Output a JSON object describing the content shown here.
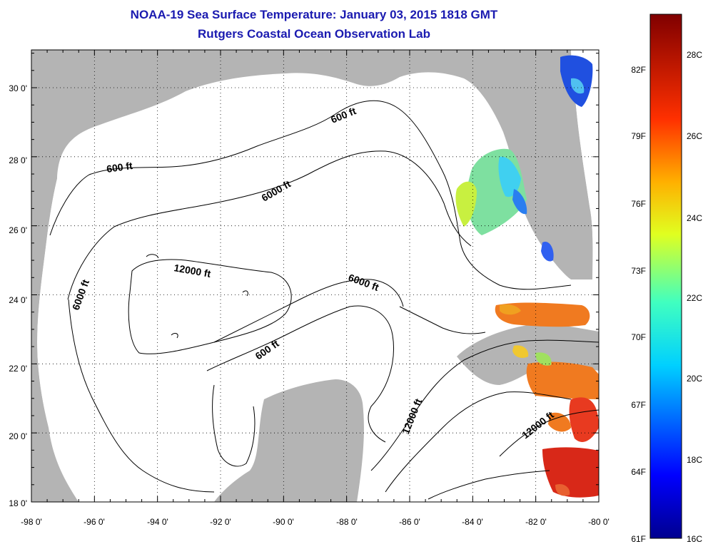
{
  "header": {
    "title": "NOAA-19 Sea Surface Temperature:  January 03, 2015 1818 GMT",
    "subtitle": "Rutgers Coastal Ocean Observation Lab"
  },
  "map": {
    "lon_labels": [
      "-98 0'",
      "-96 0'",
      "-94 0'",
      "-92 0'",
      "-90 0'",
      "-88 0'",
      "-86 0'",
      "-84 0'",
      "-82 0'",
      "-80 0'"
    ],
    "lat_labels": [
      "30 0'",
      "28 0'",
      "26 0'",
      "24 0'",
      "22 0'",
      "20 0'",
      "18 0'"
    ],
    "contour_labels": [
      {
        "id": "600a",
        "text": "600 ft"
      },
      {
        "id": "600b",
        "text": "600 ft"
      },
      {
        "id": "600c",
        "text": "600 ft"
      },
      {
        "id": "6000a",
        "text": "6000 ft"
      },
      {
        "id": "6000b",
        "text": "6000 ft"
      },
      {
        "id": "6000c",
        "text": "6000 ft"
      },
      {
        "id": "12000a",
        "text": "12000 ft"
      },
      {
        "id": "12000b",
        "text": "12000 ft"
      },
      {
        "id": "12000c",
        "text": "12000 ft"
      }
    ],
    "colors": {
      "land": "#b4b4b4",
      "ocean": "#ffffff",
      "contour": "#000000",
      "title": "#1a1ab0"
    }
  },
  "colorbar": {
    "f_labels": [
      "82F",
      "79F",
      "76F",
      "73F",
      "70F",
      "67F",
      "64F",
      "61F"
    ],
    "c_labels": [
      "28C",
      "26C",
      "24C",
      "22C",
      "20C",
      "18C",
      "16C"
    ],
    "range_c": [
      16,
      29.5
    ],
    "stops": [
      "#00008f",
      "#0000ff",
      "#0080ff",
      "#00ffff",
      "#80ff80",
      "#ffff00",
      "#ff8000",
      "#ff0000",
      "#800000"
    ]
  }
}
